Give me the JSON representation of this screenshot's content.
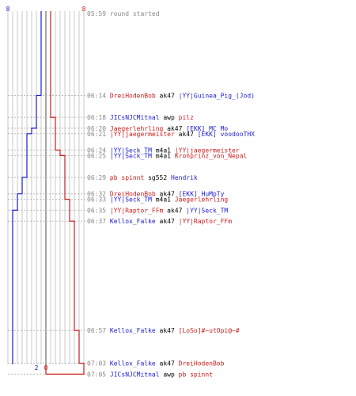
{
  "colors": {
    "team_a": "#1c1ccc",
    "team_b": "#cc1c1c",
    "grid": "#c8c8c8",
    "center": "#888888",
    "time": "#888888",
    "dash": "#b8b8b8",
    "neutral": "#000000"
  },
  "score": {
    "team_a_start": "8",
    "team_b_start": "8",
    "team_a_end": "2",
    "team_b_end": "0"
  },
  "events": [
    {
      "time": "05:59",
      "parts": [
        {
          "t": "round started",
          "c": "neutral"
        }
      ],
      "kind": "start"
    },
    {
      "time": "06:14",
      "parts": [
        {
          "t": "DreiHodenBob",
          "c": "team_b"
        },
        {
          "t": " ak47 ",
          "c": "neutral"
        },
        {
          "t": "|YY|Guinea_Pig_(Jod)",
          "c": "team_a"
        }
      ],
      "kind": "a_loses"
    },
    {
      "time": "06:18",
      "parts": [
        {
          "t": "JICsNJCMitnal",
          "c": "team_a"
        },
        {
          "t": " awp ",
          "c": "neutral"
        },
        {
          "t": "pilz",
          "c": "team_b"
        }
      ],
      "kind": "b_loses"
    },
    {
      "time": "06:20",
      "parts": [
        {
          "t": "Jaegerlehrling",
          "c": "team_b"
        },
        {
          "t": " ak47 ",
          "c": "neutral"
        },
        {
          "t": "[EKK] MC Mo",
          "c": "team_a"
        }
      ],
      "kind": "a_loses"
    },
    {
      "time": "06:21",
      "parts": [
        {
          "t": "|YY|jaegermeister",
          "c": "team_b"
        },
        {
          "t": " ak47 ",
          "c": "neutral"
        },
        {
          "t": "[EKK] voodooTHX",
          "c": "team_a"
        }
      ],
      "kind": "a_loses"
    },
    {
      "time": "06:24",
      "parts": [
        {
          "t": "|YY|Seck_TM",
          "c": "team_a"
        },
        {
          "t": " m4a1 ",
          "c": "neutral"
        },
        {
          "t": "|YY|jaegermeister",
          "c": "team_b"
        }
      ],
      "kind": "b_loses"
    },
    {
      "time": "06:25",
      "parts": [
        {
          "t": "|YY|Seck_TM",
          "c": "team_a"
        },
        {
          "t": " m4a1 ",
          "c": "neutral"
        },
        {
          "t": "Kronprinz_von_Nepal",
          "c": "team_b"
        }
      ],
      "kind": "b_loses"
    },
    {
      "time": "06:29",
      "parts": [
        {
          "t": "pb spinnt",
          "c": "team_b"
        },
        {
          "t": " sg552 ",
          "c": "neutral"
        },
        {
          "t": "Hendrik",
          "c": "team_a"
        }
      ],
      "kind": "a_loses"
    },
    {
      "time": "06:32",
      "parts": [
        {
          "t": "DreiHodenBob",
          "c": "team_b"
        },
        {
          "t": " ak47 ",
          "c": "neutral"
        },
        {
          "t": "[EKK] HuMpTy",
          "c": "team_a"
        }
      ],
      "kind": "a_loses"
    },
    {
      "time": "06:33",
      "parts": [
        {
          "t": "|YY|Seck_TM",
          "c": "team_a"
        },
        {
          "t": " m4a1 ",
          "c": "neutral"
        },
        {
          "t": "Jaegerlehrling",
          "c": "team_b"
        }
      ],
      "kind": "b_loses"
    },
    {
      "time": "06:35",
      "parts": [
        {
          "t": "|YY|Raptor_FFm",
          "c": "team_b"
        },
        {
          "t": " ak47 ",
          "c": "neutral"
        },
        {
          "t": "|YY|Seck_TM",
          "c": "team_a"
        }
      ],
      "kind": "a_loses"
    },
    {
      "time": "06:37",
      "parts": [
        {
          "t": "Kellox_Falke",
          "c": "team_a"
        },
        {
          "t": " ak47 ",
          "c": "neutral"
        },
        {
          "t": "|YY|Raptor_FFm",
          "c": "team_b"
        }
      ],
      "kind": "b_loses"
    },
    {
      "time": "06:57",
      "parts": [
        {
          "t": "Kellox_Falke",
          "c": "team_a"
        },
        {
          "t": " ak47 ",
          "c": "neutral"
        },
        {
          "t": "[LoSo]#~utOpi@~#",
          "c": "team_b"
        }
      ],
      "kind": "b_loses"
    },
    {
      "time": "07:03",
      "parts": [
        {
          "t": "Kellox_Falke",
          "c": "team_a"
        },
        {
          "t": " ak47 ",
          "c": "neutral"
        },
        {
          "t": "DreiHodenBob",
          "c": "team_b"
        }
      ],
      "kind": "b_loses"
    },
    {
      "time": "07:05",
      "parts": [
        {
          "t": "JICsNJCMitnal",
          "c": "team_a"
        },
        {
          "t": " awp ",
          "c": "neutral"
        },
        {
          "t": "pb spinnt",
          "c": "team_b"
        }
      ],
      "kind": "b_loses"
    }
  ]
}
